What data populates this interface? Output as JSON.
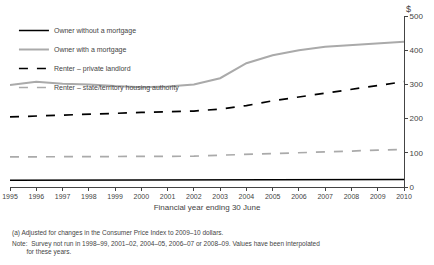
{
  "chart_data": {
    "type": "line",
    "x": [
      1995,
      1996,
      1997,
      1998,
      1999,
      2000,
      2001,
      2002,
      2003,
      2004,
      2005,
      2006,
      2007,
      2008,
      2009,
      2010
    ],
    "series": [
      {
        "name": "Owner without a mortgage",
        "color": "#000000",
        "line_style": "solid",
        "values": [
          20,
          20,
          20,
          20,
          20,
          20,
          20,
          20,
          20,
          20,
          20,
          20,
          20,
          20,
          20,
          22
        ]
      },
      {
        "name": "Owner with a mortgage",
        "color": "#aaaaaa",
        "line_style": "solid",
        "values": [
          298,
          308,
          302,
          300,
          295,
          292,
          294,
          300,
          318,
          362,
          385,
          400,
          410,
          415,
          418,
          425
        ]
      },
      {
        "name": "Renter – private landlord",
        "color": "#000000",
        "line_style": "dashed",
        "values": [
          205,
          208,
          210,
          212,
          215,
          218,
          220,
          222,
          228,
          238,
          252,
          263,
          275,
          285,
          295,
          308
        ]
      },
      {
        "name": "Renter – state/territory housing authority",
        "color": "#aaaaaa",
        "line_style": "dashed",
        "values": [
          88,
          88,
          88,
          88,
          88,
          90,
          90,
          90,
          93,
          95,
          97,
          99,
          102,
          105,
          108,
          110
        ]
      }
    ],
    "xlim": [
      1995,
      2010
    ],
    "xticks": [
      1995,
      1996,
      1997,
      1998,
      1999,
      2000,
      2001,
      2002,
      2003,
      2004,
      2005,
      2006,
      2007,
      2008,
      2009,
      2010
    ],
    "ylim": [
      0,
      500
    ],
    "yticks": [
      0,
      100,
      200,
      300,
      400,
      500
    ],
    "xlabel": "Financial year ending 30 June",
    "ylabel": "$",
    "annotations": [
      "(a) Adjusted for changes in the Consumer Price Index to 2009–10 dollars.",
      "Note:  Survey not run in 1998–99, 2001–02, 2004–05, 2006–07 or 2008–09. Values have been interpolated\n        for these years."
    ],
    "legend": "upper left",
    "grid": false
  }
}
